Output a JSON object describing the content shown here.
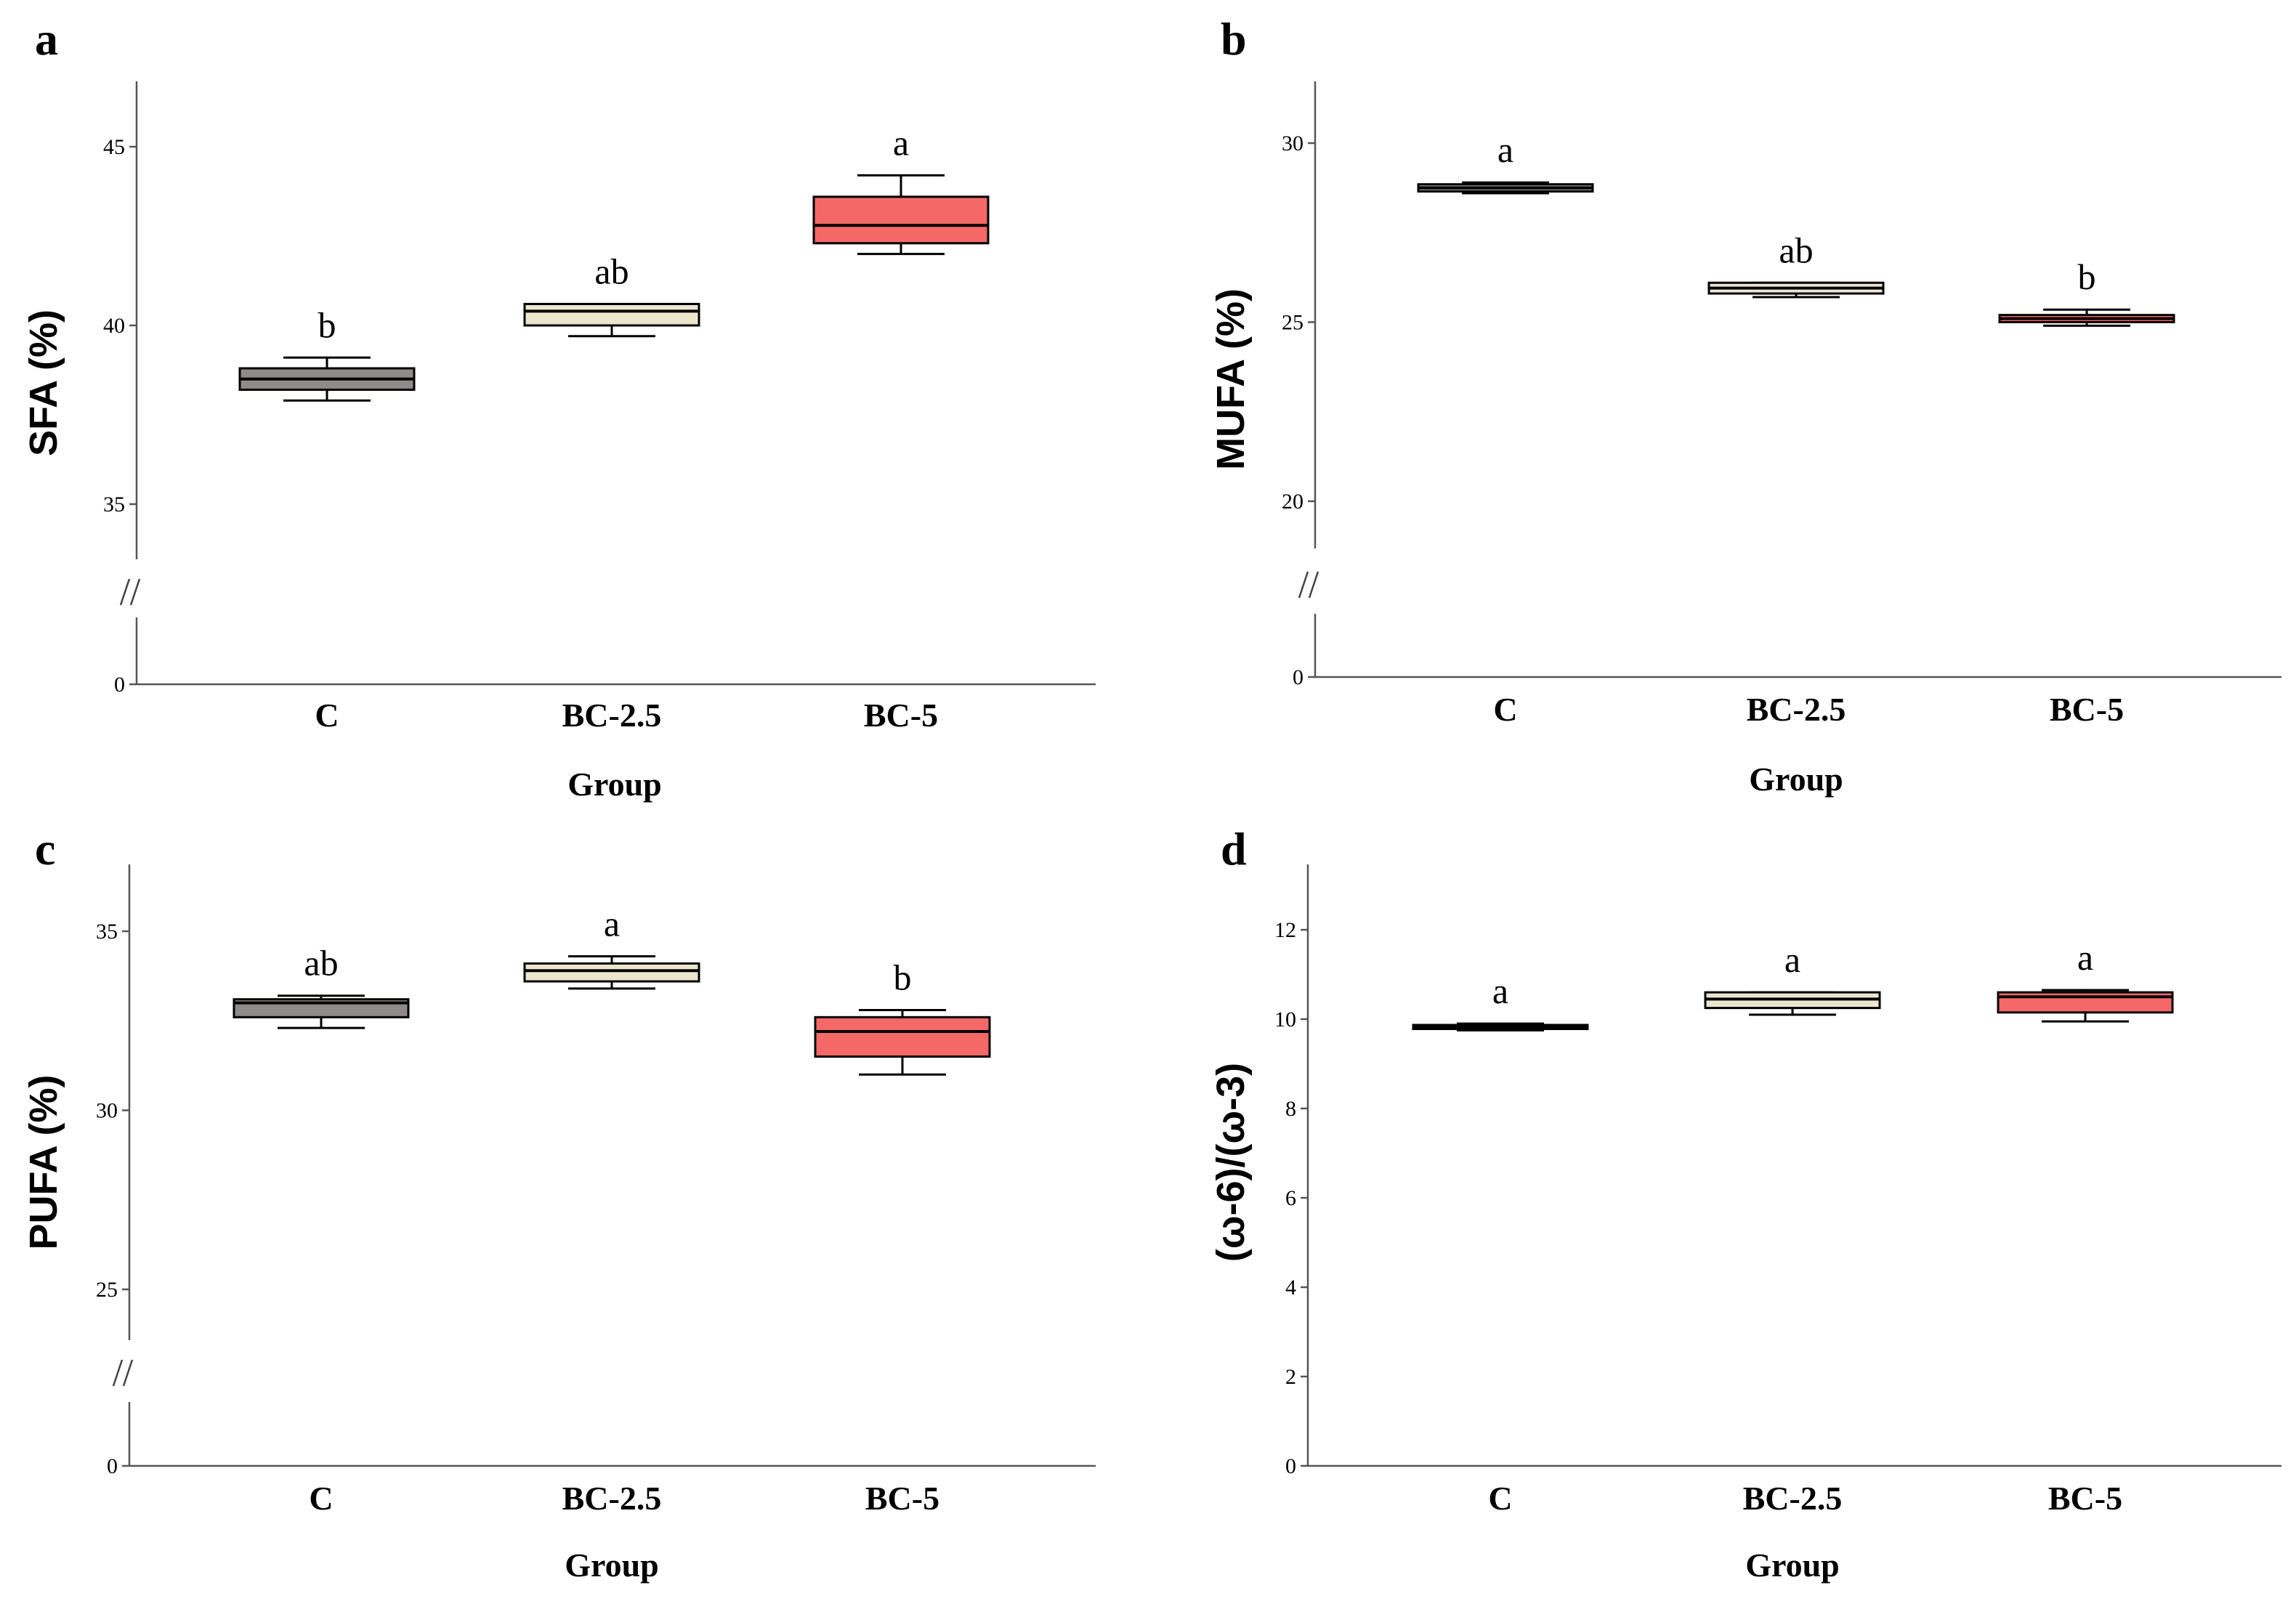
{
  "colors": {
    "C": "#8f8b8b",
    "BC-2.5": "#ece6cf",
    "BC-5": "#f56868"
  },
  "chart_data": [
    {
      "panel": "a",
      "type": "box",
      "ylabel": "SFA (%)",
      "xlabel": "Group",
      "categories": [
        "C",
        "BC-2.5",
        "BC-5"
      ],
      "yticks": [
        0,
        35,
        40,
        45
      ],
      "axis_break": true,
      "series": [
        {
          "name": "C",
          "min": 37.9,
          "q1": 38.2,
          "median": 38.5,
          "q3": 38.8,
          "max": 39.1,
          "sig": "b"
        },
        {
          "name": "BC-2.5",
          "min": 39.7,
          "q1": 40.0,
          "median": 40.4,
          "q3": 40.6,
          "max": 40.6,
          "sig": "ab"
        },
        {
          "name": "BC-5",
          "min": 42.0,
          "q1": 42.3,
          "median": 42.8,
          "q3": 43.6,
          "max": 44.2,
          "sig": "a"
        }
      ]
    },
    {
      "panel": "b",
      "type": "box",
      "ylabel": "MUFA (%)",
      "xlabel": "Group",
      "categories": [
        "C",
        "BC-2.5",
        "BC-5"
      ],
      "yticks": [
        0,
        20,
        25,
        30
      ],
      "axis_break": true,
      "series": [
        {
          "name": "C",
          "min": 28.6,
          "q1": 28.65,
          "median": 28.75,
          "q3": 28.85,
          "max": 28.9,
          "sig": "a"
        },
        {
          "name": "BC-2.5",
          "min": 25.7,
          "q1": 25.8,
          "median": 25.95,
          "q3": 26.1,
          "max": 26.1,
          "sig": "ab"
        },
        {
          "name": "BC-5",
          "min": 24.9,
          "q1": 25.0,
          "median": 25.1,
          "q3": 25.2,
          "max": 25.35,
          "sig": "b"
        }
      ]
    },
    {
      "panel": "c",
      "type": "box",
      "ylabel": "PUFA (%)",
      "xlabel": "Group",
      "categories": [
        "C",
        "BC-2.5",
        "BC-5"
      ],
      "yticks": [
        0,
        25,
        30,
        35
      ],
      "axis_break": true,
      "series": [
        {
          "name": "C",
          "min": 32.3,
          "q1": 32.6,
          "median": 33.0,
          "q3": 33.1,
          "max": 33.2,
          "sig": "ab"
        },
        {
          "name": "BC-2.5",
          "min": 33.4,
          "q1": 33.6,
          "median": 33.9,
          "q3": 34.1,
          "max": 34.3,
          "sig": "a"
        },
        {
          "name": "BC-5",
          "min": 31.0,
          "q1": 31.5,
          "median": 32.2,
          "q3": 32.6,
          "max": 32.8,
          "sig": "b"
        }
      ]
    },
    {
      "panel": "d",
      "type": "box",
      "ylabel": "(ω-6)/(ω-3)",
      "xlabel": "Group",
      "categories": [
        "C",
        "BC-2.5",
        "BC-5"
      ],
      "yticks": [
        0,
        2,
        4,
        6,
        8,
        10,
        12
      ],
      "axis_break": false,
      "series": [
        {
          "name": "C",
          "min": 9.75,
          "q1": 9.78,
          "median": 9.82,
          "q3": 9.87,
          "max": 9.9,
          "sig": "a"
        },
        {
          "name": "BC-2.5",
          "min": 10.1,
          "q1": 10.25,
          "median": 10.45,
          "q3": 10.6,
          "max": 10.6,
          "sig": "a"
        },
        {
          "name": "BC-5",
          "min": 9.95,
          "q1": 10.15,
          "median": 10.5,
          "q3": 10.6,
          "max": 10.65,
          "sig": "a"
        }
      ]
    }
  ]
}
